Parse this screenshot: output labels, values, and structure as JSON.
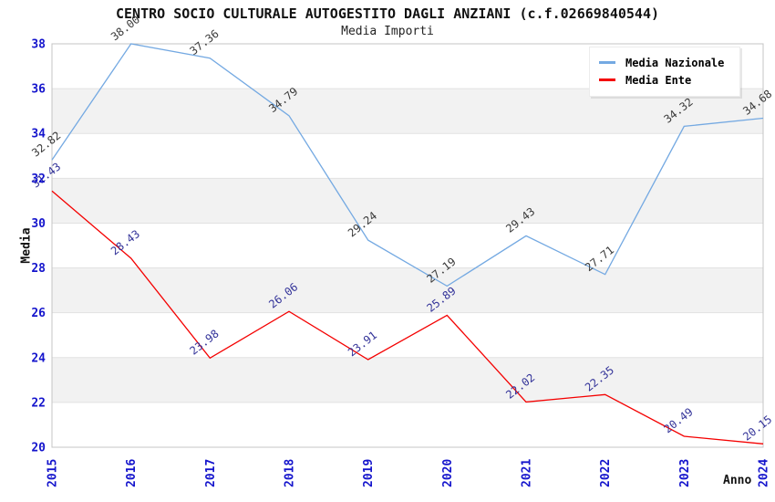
{
  "chart_data": {
    "type": "line",
    "title": "CENTRO SOCIO CULTURALE AUTOGESTITO DAGLI ANZIANI (c.f.02669840544)",
    "subtitle": "Media Importi",
    "xlabel": "Anno",
    "ylabel": "Media",
    "ylim": [
      20,
      38
    ],
    "ytick_step": 2,
    "grid": true,
    "legend_position": "top-right",
    "categories": [
      "2015",
      "2016",
      "2017",
      "2018",
      "2019",
      "2020",
      "2021",
      "2022",
      "2023",
      "2024"
    ],
    "series": [
      {
        "name": "Media Nazionale",
        "color": "#74a9e2",
        "label_color": "#3a3a3a",
        "values": [
          32.82,
          38.0,
          37.36,
          34.79,
          29.24,
          27.19,
          29.43,
          27.71,
          34.32,
          34.68
        ],
        "value_labels": [
          "32.82",
          "38.00",
          "37.36",
          "34.79",
          "29.24",
          "27.19",
          "29.43",
          "27.71",
          "34.32",
          "34.68"
        ]
      },
      {
        "name": "Media Ente",
        "color": "#f40000",
        "label_color": "#333399",
        "values": [
          31.43,
          28.43,
          23.98,
          26.06,
          23.91,
          25.89,
          22.02,
          22.35,
          20.49,
          20.15
        ],
        "value_labels": [
          "31.43",
          "28.43",
          "23.98",
          "26.06",
          "23.91",
          "25.89",
          "22.02",
          "22.35",
          "20.49",
          "20.15"
        ]
      }
    ],
    "colors": {
      "band": "#f2f2f2",
      "grid": "#e2e2e2",
      "border": "#c4c4c4",
      "tick_label": "#1414cc",
      "title_text": "#111111"
    }
  }
}
